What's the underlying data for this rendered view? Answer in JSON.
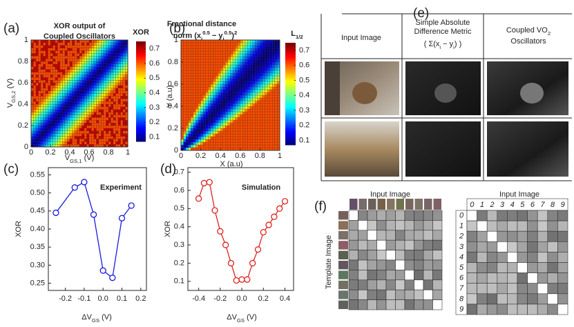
{
  "chart_data": [
    {
      "type": "heatmap",
      "panel": "(a)",
      "title": [
        "XOR output of",
        "Coupled Oscillators"
      ],
      "x_label": [
        {
          "text": "V"
        },
        {
          "text": "GS,1",
          "pos": "sub"
        },
        {
          "text": " (V)"
        }
      ],
      "y_label": [
        {
          "text": "V"
        },
        {
          "text": "GS,2",
          "pos": "sub"
        },
        {
          "text": " (V)"
        }
      ],
      "xlim": [
        0,
        1
      ],
      "ylim": [
        0,
        1
      ],
      "xticks": [
        0,
        0.2,
        0.4,
        0.6,
        0.8,
        1
      ],
      "yticks": [
        0,
        0.2,
        0.4,
        0.6,
        0.8,
        1
      ],
      "colorbar_title": [
        {
          "text": "XOR"
        }
      ],
      "clim": [
        0.07,
        0.75
      ],
      "cticks": [
        0.1,
        0.2,
        0.3,
        0.4,
        0.5,
        0.6,
        0.7
      ]
    },
    {
      "type": "heatmap",
      "panel": "(b)",
      "title": [
        "Fractional distance"
      ],
      "title_rich": [
        {
          "text": "norm ("
        },
        {
          "text": "x"
        },
        {
          "text": "i",
          "pos": "sub"
        },
        {
          "text": "0.5",
          "pos": "super"
        },
        {
          "text": " − y"
        },
        {
          "text": "i",
          "pos": "sub"
        },
        {
          "text": "0.5",
          "pos": "super"
        },
        {
          "text": ")"
        },
        {
          "text": "2",
          "pos": "super"
        }
      ],
      "x_label": [
        {
          "text": "X (a.u)"
        }
      ],
      "y_label": [
        {
          "text": "Y (a.u)"
        }
      ],
      "xlim": [
        0,
        1
      ],
      "ylim": [
        0,
        1
      ],
      "xticks": [
        0,
        0.2,
        0.4,
        0.6,
        0.8,
        1
      ],
      "yticks": [
        0,
        0.2,
        0.4,
        0.6,
        0.8,
        1
      ],
      "colorbar_title": [
        {
          "text": "L"
        },
        {
          "text": "1/2",
          "pos": "sub"
        }
      ],
      "clim": [
        0.07,
        0.75
      ],
      "cticks": [
        0.1,
        0.2,
        0.3,
        0.4,
        0.5,
        0.6,
        0.7
      ]
    },
    {
      "type": "line",
      "panel": "(c)",
      "title": [
        "Experiment"
      ],
      "color": "#1a1adc",
      "x_label": [
        {
          "text": "ΔV"
        },
        {
          "text": "GS",
          "pos": "sub"
        },
        {
          "text": " (V)"
        }
      ],
      "y_label": [
        {
          "text": "XOR"
        }
      ],
      "x": [
        -0.25,
        -0.15,
        -0.1,
        -0.05,
        0,
        0.05,
        0.1,
        0.15
      ],
      "values": [
        0.445,
        0.515,
        0.53,
        0.44,
        0.285,
        0.265,
        0.43,
        0.465
      ],
      "xlim": [
        -0.29,
        0.23
      ],
      "ylim": [
        0.23,
        0.57
      ],
      "xticks": [
        -0.2,
        -0.1,
        {
          "value": 0,
          "label": "0.0"
        },
        0.1,
        0.2
      ],
      "yticks": [
        0.25,
        {
          "value": 0.3,
          "label": "0.30"
        },
        0.35,
        {
          "value": 0.4,
          "label": "0.40"
        },
        0.45,
        {
          "value": 0.5,
          "label": "0.50"
        },
        0.55
      ]
    },
    {
      "type": "line",
      "panel": "(d)",
      "title": [
        "Simulation"
      ],
      "color": "#e02020",
      "x_label": [
        {
          "text": "ΔV"
        },
        {
          "text": "GS",
          "pos": "sub"
        },
        {
          "text": " (V)"
        }
      ],
      "y_label": [
        {
          "text": "XOR"
        }
      ],
      "x": [
        -0.4,
        -0.35,
        -0.3,
        -0.25,
        -0.2,
        -0.15,
        -0.1,
        -0.05,
        0,
        0.05,
        0.1,
        0.15,
        0.2,
        0.25,
        0.3,
        0.35,
        0.4
      ],
      "values": [
        0.555,
        0.64,
        0.645,
        0.49,
        0.375,
        0.3,
        0.2,
        0.105,
        0.11,
        0.11,
        0.2,
        0.275,
        0.37,
        0.41,
        0.455,
        0.5,
        0.54
      ],
      "xlim": [
        -0.5,
        0.48
      ],
      "ylim": [
        0.05,
        0.725
      ],
      "xticks": [
        -0.4,
        -0.2,
        {
          "value": 0,
          "label": "0.0"
        },
        0.2,
        0.4
      ],
      "yticks": [
        0.1,
        0.2,
        0.3,
        0.4,
        0.5,
        0.6,
        0.7
      ]
    }
  ],
  "panel_e": {
    "label": "(e)",
    "headers": [
      [
        {
          "text": "Input Image"
        }
      ],
      [
        {
          "text": "Simple Absolute"
        }
      ],
      [
        {
          "text": "Difference Metric"
        }
      ],
      [
        {
          "text": "( Σ(x"
        },
        {
          "text": "i",
          "pos": "sub"
        },
        {
          "text": " − y"
        },
        {
          "text": "i",
          "pos": "sub"
        },
        {
          "text": ") )"
        }
      ],
      [
        {
          "text": "Coupled VO"
        },
        {
          "text": "2",
          "pos": "sub"
        }
      ],
      [
        {
          "text": "Oscillators"
        }
      ]
    ]
  },
  "panel_f": {
    "label": "(f)",
    "left": {
      "x_label": "Input Image",
      "y_label": "Template Image"
    },
    "right": {
      "x_label": "Input Image",
      "digits": [
        "0",
        "1",
        "2",
        "3",
        "4",
        "5",
        "6",
        "7",
        "8",
        "9"
      ]
    }
  }
}
